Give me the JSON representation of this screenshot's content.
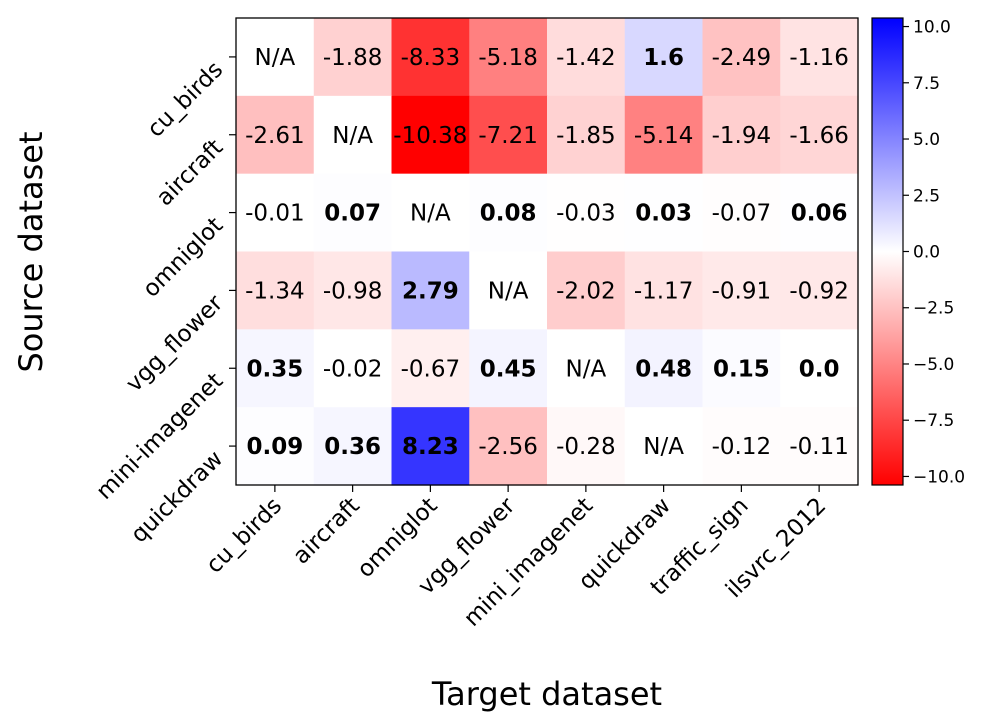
{
  "chart_data": {
    "type": "heatmap",
    "xlabel": "Target dataset",
    "ylabel": "Source dataset",
    "x_categories": [
      "cu_birds",
      "aircraft",
      "omniglot",
      "vgg_flower",
      "mini_imagenet",
      "quickdraw",
      "traffic_sign",
      "ilsvrc_2012"
    ],
    "y_categories": [
      "cu_birds",
      "aircraft",
      "omniglot",
      "vgg_flower",
      "mini-imagenet",
      "quickdraw"
    ],
    "values": [
      [
        null,
        -1.88,
        -8.33,
        -5.18,
        -1.42,
        1.6,
        -2.49,
        -1.16
      ],
      [
        -2.61,
        null,
        -10.38,
        -7.21,
        -1.85,
        -5.14,
        -1.94,
        -1.66
      ],
      [
        -0.01,
        0.07,
        null,
        0.08,
        -0.03,
        0.03,
        -0.07,
        0.06
      ],
      [
        -1.34,
        -0.98,
        2.79,
        null,
        -2.02,
        -1.17,
        -0.91,
        -0.92
      ],
      [
        0.35,
        -0.02,
        -0.67,
        0.45,
        null,
        0.48,
        0.15,
        0.0
      ],
      [
        0.09,
        0.36,
        8.23,
        -2.56,
        -0.28,
        null,
        -0.12,
        -0.11
      ]
    ],
    "cell_labels": [
      [
        "N/A",
        "-1.88",
        "-8.33",
        "-5.18",
        "-1.42",
        "1.6",
        "-2.49",
        "-1.16"
      ],
      [
        "-2.61",
        "N/A",
        "-10.38",
        "-7.21",
        "-1.85",
        "-5.14",
        "-1.94",
        "-1.66"
      ],
      [
        "-0.01",
        "0.07",
        "N/A",
        "0.08",
        "-0.03",
        "0.03",
        "-0.07",
        "0.06"
      ],
      [
        "-1.34",
        "-0.98",
        "2.79",
        "N/A",
        "-2.02",
        "-1.17",
        "-0.91",
        "-0.92"
      ],
      [
        "0.35",
        "-0.02",
        "-0.67",
        "0.45",
        "N/A",
        "0.48",
        "0.15",
        "0.0"
      ],
      [
        "0.09",
        "0.36",
        "8.23",
        "-2.56",
        "-0.28",
        "N/A",
        "-0.12",
        "-0.11"
      ]
    ],
    "bold": [
      [
        false,
        false,
        false,
        false,
        false,
        true,
        false,
        false
      ],
      [
        false,
        false,
        false,
        false,
        false,
        false,
        false,
        false
      ],
      [
        false,
        true,
        false,
        true,
        false,
        true,
        false,
        true
      ],
      [
        false,
        false,
        true,
        false,
        false,
        false,
        false,
        false
      ],
      [
        true,
        false,
        false,
        true,
        false,
        true,
        true,
        true
      ],
      [
        true,
        true,
        true,
        false,
        false,
        false,
        false,
        false
      ]
    ],
    "colorbar": {
      "range": [
        -10.38,
        10.38
      ],
      "ticks": [
        10.0,
        7.5,
        5.0,
        2.5,
        0.0,
        -2.5,
        -5.0,
        -7.5,
        -10.0
      ],
      "tick_labels": [
        "10.0",
        "7.5",
        "5.0",
        "2.5",
        "0.0",
        "−2.5",
        "−5.0",
        "−7.5",
        "−10.0"
      ],
      "colormap": "bwr",
      "colors": {
        "low": "#ff0000",
        "mid": "#ffffff",
        "high": "#0000ff"
      }
    },
    "legend_position": "right"
  }
}
